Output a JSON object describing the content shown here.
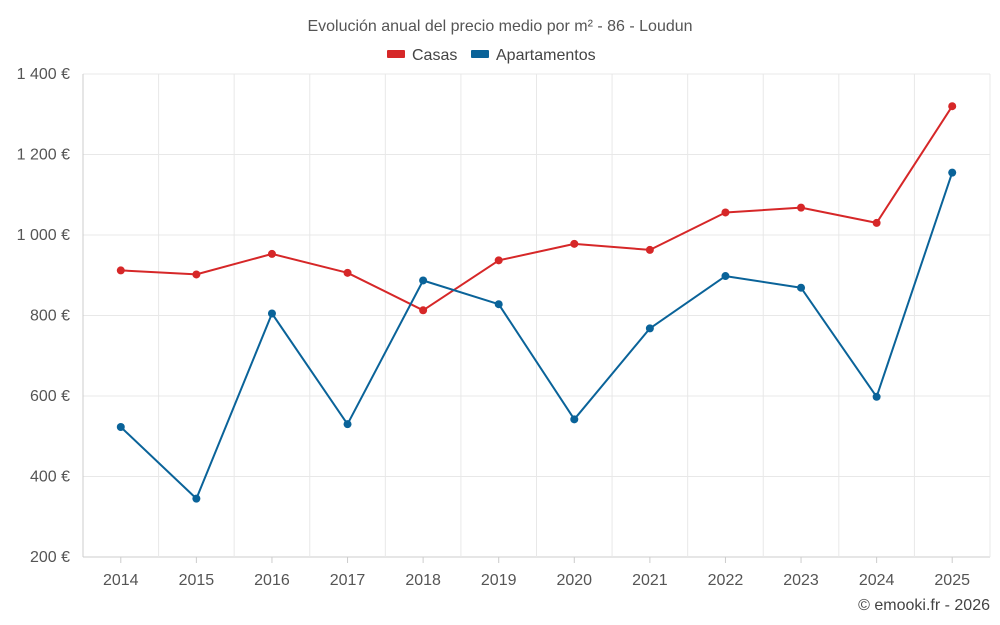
{
  "chart_data": {
    "type": "line",
    "title": "Evolución anual del precio medio por m² - 86 - Loudun",
    "categories": [
      "2014",
      "2015",
      "2016",
      "2017",
      "2018",
      "2019",
      "2020",
      "2021",
      "2022",
      "2023",
      "2024",
      "2025"
    ],
    "series": [
      {
        "name": "Casas",
        "color": "#d62728",
        "values": [
          912,
          902,
          953,
          906,
          813,
          937,
          978,
          963,
          1056,
          1068,
          1030,
          1320
        ]
      },
      {
        "name": "Apartamentos",
        "color": "#0a6399",
        "values": [
          523,
          345,
          805,
          530,
          887,
          828,
          542,
          768,
          898,
          869,
          598,
          1155
        ]
      }
    ],
    "ylim": [
      200,
      1400
    ],
    "yticks": [
      200,
      400,
      600,
      800,
      1000,
      1200,
      1400
    ],
    "ytick_labels": [
      "200 €",
      "400 €",
      "600 €",
      "800 €",
      "1 000 €",
      "1 200 €",
      "1 400 €"
    ],
    "xlabel": "",
    "ylabel": "",
    "grid": true,
    "legend_position": "top-center"
  },
  "credit": "© emooki.fr - 2026"
}
